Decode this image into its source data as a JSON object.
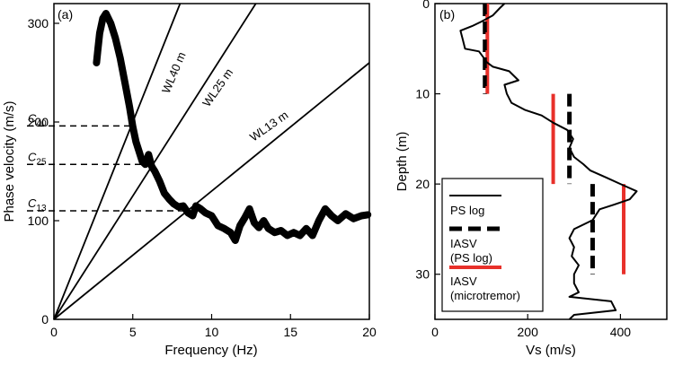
{
  "chart_data": [
    {
      "type": "line",
      "panel_label": "(a)",
      "xlabel": "Frequency (Hz)",
      "ylabel": "Phase velocity (m/s)",
      "xlim": [
        0,
        20
      ],
      "ylim": [
        0,
        320
      ],
      "xticks": [
        0,
        5,
        10,
        15,
        20
      ],
      "yticks": [
        0,
        100,
        200,
        300
      ],
      "grid": false,
      "dispersion_curve": [
        [
          2.7,
          260
        ],
        [
          2.8,
          275
        ],
        [
          2.9,
          290
        ],
        [
          3.1,
          305
        ],
        [
          3.3,
          310
        ],
        [
          3.6,
          300
        ],
        [
          3.9,
          285
        ],
        [
          4.2,
          265
        ],
        [
          4.5,
          240
        ],
        [
          4.8,
          215
        ],
        [
          5.0,
          195
        ],
        [
          5.2,
          180
        ],
        [
          5.4,
          170
        ],
        [
          5.6,
          160
        ],
        [
          5.8,
          157
        ],
        [
          6.0,
          167
        ],
        [
          6.2,
          155
        ],
        [
          6.4,
          150
        ],
        [
          6.7,
          140
        ],
        [
          7.0,
          128
        ],
        [
          7.3,
          122
        ],
        [
          7.6,
          117
        ],
        [
          7.9,
          114
        ],
        [
          8.2,
          115
        ],
        [
          8.5,
          108
        ],
        [
          8.8,
          105
        ],
        [
          9.0,
          115
        ],
        [
          9.3,
          112
        ],
        [
          9.6,
          108
        ],
        [
          10.0,
          105
        ],
        [
          10.4,
          95
        ],
        [
          10.8,
          92
        ],
        [
          11.2,
          88
        ],
        [
          11.5,
          80
        ],
        [
          11.8,
          95
        ],
        [
          12.1,
          103
        ],
        [
          12.4,
          112
        ],
        [
          12.7,
          98
        ],
        [
          13.0,
          93
        ],
        [
          13.3,
          100
        ],
        [
          13.6,
          92
        ],
        [
          14.0,
          88
        ],
        [
          14.4,
          90
        ],
        [
          14.8,
          85
        ],
        [
          15.2,
          88
        ],
        [
          15.6,
          85
        ],
        [
          16.0,
          92
        ],
        [
          16.4,
          85
        ],
        [
          16.8,
          100
        ],
        [
          17.2,
          112
        ],
        [
          17.6,
          105
        ],
        [
          18.0,
          100
        ],
        [
          18.5,
          107
        ],
        [
          19.0,
          102
        ],
        [
          19.5,
          105
        ],
        [
          19.9,
          106
        ]
      ],
      "wavelength_lines": [
        {
          "label": "WL40 m",
          "wavelength_m": 40
        },
        {
          "label": "WL25 m",
          "wavelength_m": 25
        },
        {
          "label": "WL13 m",
          "wavelength_m": 13
        }
      ],
      "reference_velocities": [
        {
          "name": "C40",
          "sub": "40",
          "value": 196
        },
        {
          "name": "C25",
          "sub": "25",
          "value": 157
        },
        {
          "name": "C13",
          "sub": "13",
          "value": 110
        }
      ]
    },
    {
      "type": "line",
      "panel_label": "(b)",
      "xlabel": "Vs (m/s)",
      "ylabel": "Depth (m)",
      "xlim": [
        0,
        500
      ],
      "ylim": [
        35,
        0
      ],
      "xticks": [
        0,
        200,
        400
      ],
      "yticks": [
        0,
        10,
        20,
        30
      ],
      "grid": false,
      "ps_log": [
        [
          150,
          0
        ],
        [
          140,
          0.5
        ],
        [
          125,
          1.3
        ],
        [
          100,
          2
        ],
        [
          80,
          2.5
        ],
        [
          55,
          3
        ],
        [
          60,
          4
        ],
        [
          65,
          5
        ],
        [
          95,
          5.3
        ],
        [
          105,
          6
        ],
        [
          112,
          6.5
        ],
        [
          125,
          7
        ],
        [
          160,
          7.5
        ],
        [
          180,
          8.5
        ],
        [
          150,
          9
        ],
        [
          155,
          10
        ],
        [
          165,
          11
        ],
        [
          195,
          11.8
        ],
        [
          230,
          12.4
        ],
        [
          255,
          13.2
        ],
        [
          285,
          14
        ],
        [
          298,
          15
        ],
        [
          290,
          16
        ],
        [
          300,
          17
        ],
        [
          320,
          17.8
        ],
        [
          335,
          18.5
        ],
        [
          370,
          19.3
        ],
        [
          400,
          20
        ],
        [
          435,
          20.8
        ],
        [
          420,
          21.7
        ],
        [
          385,
          22.3
        ],
        [
          355,
          22.8
        ],
        [
          340,
          24
        ],
        [
          300,
          25
        ],
        [
          290,
          26
        ],
        [
          300,
          27
        ],
        [
          295,
          28
        ],
        [
          310,
          29
        ],
        [
          300,
          30
        ],
        [
          300,
          31
        ],
        [
          310,
          32
        ],
        [
          290,
          32.5
        ],
        [
          380,
          33
        ],
        [
          390,
          34
        ],
        [
          300,
          34.5
        ],
        [
          290,
          35
        ]
      ],
      "iasv_ps_log": [
        {
          "x": 108,
          "y0": 0,
          "y1": 10
        },
        {
          "x": 290,
          "y0": 10,
          "y1": 20
        },
        {
          "x": 340,
          "y0": 20,
          "y1": 30
        }
      ],
      "iasv_microtremor": [
        {
          "x": 113,
          "y0": 0,
          "y1": 10
        },
        {
          "x": 255,
          "y0": 10,
          "y1": 20
        },
        {
          "x": 407,
          "y0": 20,
          "y1": 30
        }
      ],
      "legend": {
        "ps_log": "PS log",
        "iasv_ps_log_1": "IASV",
        "iasv_ps_log_2": "(PS log)",
        "iasv_micro_1": "IASV",
        "iasv_micro_2": "(microtremor)"
      },
      "colors": {
        "microtremor": "#e8302a",
        "ps": "#000000"
      }
    }
  ]
}
